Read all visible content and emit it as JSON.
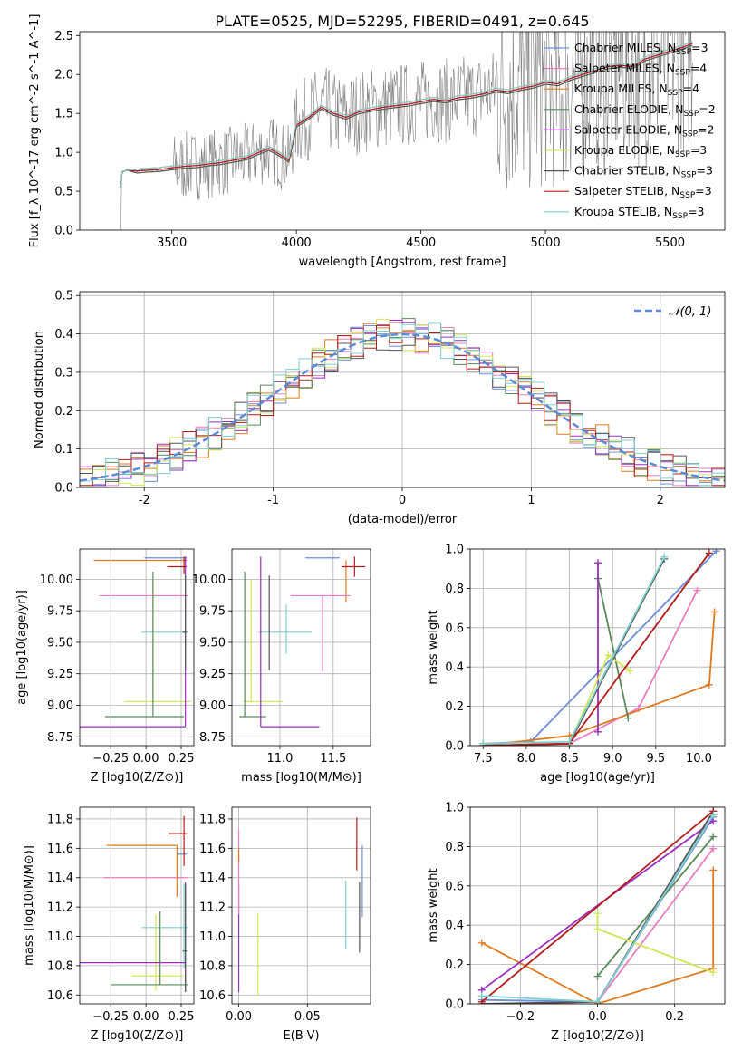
{
  "figure": {
    "title": "PLATE=0525, MJD=52295, FIBERID=0491, z=0.645"
  },
  "models": [
    {
      "name": "Chabrier MILES",
      "nssp": "3",
      "color": "#6a8fd8"
    },
    {
      "name": "Salpeter MILES",
      "nssp": "4",
      "color": "#e87fbf"
    },
    {
      "name": "Kroupa MILES",
      "nssp": "4",
      "color": "#e07a1f"
    },
    {
      "name": "Chabrier ELODIE",
      "nssp": "2",
      "color": "#5a8a5a"
    },
    {
      "name": "Salpeter ELODIE",
      "nssp": "2",
      "color": "#9a2fbf"
    },
    {
      "name": "Kroupa ELODIE",
      "nssp": "3",
      "color": "#d4e55a"
    },
    {
      "name": "Chabrier STELIB",
      "nssp": "3",
      "color": "#555555"
    },
    {
      "name": "Salpeter STELIB",
      "nssp": "3",
      "color": "#b41c1c"
    },
    {
      "name": "Kroupa STELIB",
      "nssp": "3",
      "color": "#7fcfd0"
    }
  ],
  "chart_data": [
    {
      "id": "spectrum",
      "type": "line",
      "xlabel": "wavelength [Angstrom, rest frame]",
      "ylabel": "Flux [f_λ 10^-17 erg cm^-2 s^-1 A^-1]",
      "xlim": [
        3130,
        5720
      ],
      "ylim": [
        0,
        2.55
      ],
      "xticks": [
        3500,
        4000,
        4500,
        5000,
        5500
      ],
      "yticks": [
        0.0,
        0.5,
        1.0,
        1.5,
        2.0,
        2.5
      ],
      "ytick_labels": [
        "0.0",
        "0.5",
        "1.0",
        "1.5",
        "2.0",
        "2.5"
      ],
      "observed_color": "#808080",
      "model_x": [
        3295,
        3300,
        3320,
        3360,
        3400,
        3450,
        3500,
        3550,
        3600,
        3650,
        3700,
        3750,
        3800,
        3850,
        3890,
        3930,
        3970,
        4000,
        4050,
        4100,
        4150,
        4200,
        4250,
        4300,
        4350,
        4400,
        4450,
        4500,
        4550,
        4600,
        4650,
        4700,
        4750,
        4800,
        4850,
        4900,
        4950,
        5000,
        5050,
        5100,
        5150,
        5200,
        5250,
        5300,
        5350,
        5400,
        5450,
        5500,
        5550,
        5590
      ],
      "model_y": [
        0.55,
        0.75,
        0.77,
        0.76,
        0.77,
        0.78,
        0.8,
        0.82,
        0.83,
        0.85,
        0.87,
        0.9,
        0.93,
        1.0,
        1.05,
        0.98,
        0.9,
        1.35,
        1.45,
        1.58,
        1.5,
        1.45,
        1.52,
        1.55,
        1.58,
        1.6,
        1.62,
        1.65,
        1.68,
        1.66,
        1.7,
        1.72,
        1.75,
        1.8,
        1.78,
        1.82,
        1.85,
        1.9,
        1.88,
        1.95,
        2.0,
        2.05,
        2.1,
        2.12,
        2.1,
        2.2,
        2.25,
        2.3,
        2.35,
        2.4
      ]
    },
    {
      "id": "residuals",
      "type": "step",
      "xlabel": "(data-model)/error",
      "ylabel": "Normed distribution",
      "xlim": [
        -2.5,
        2.5
      ],
      "ylim": [
        0,
        0.51
      ],
      "xticks": [
        -2,
        -1,
        0,
        1,
        2
      ],
      "yticks": [
        0.0,
        0.1,
        0.2,
        0.3,
        0.4,
        0.5
      ],
      "ytick_labels": [
        "0.0",
        "0.1",
        "0.2",
        "0.3",
        "0.4",
        "0.5"
      ],
      "gauss_label": "𝒩(0, 1)",
      "gauss_color": "#5b8bd6"
    },
    {
      "id": "age_vs_Z",
      "type": "errorbar",
      "xlabel": "Z [log10(Z/Z⊙)]",
      "ylabel": "age [log10(age/yr)]",
      "xlim": [
        -0.47,
        0.34
      ],
      "ylim": [
        8.68,
        10.24
      ],
      "xticks": [
        -0.25,
        0.0,
        0.25
      ],
      "xtick_labels": [
        "−0.25",
        "0.00",
        "0.25"
      ],
      "yticks": [
        8.75,
        9.0,
        9.25,
        9.5,
        9.75,
        10.0
      ],
      "ytick_labels": [
        "8.75",
        "9.00",
        "9.25",
        "9.50",
        "9.75",
        "10.00"
      ],
      "points": [
        {
          "m": 2,
          "x": 0.05,
          "xe": [
            0.42,
            0.24
          ],
          "y": 10.15,
          "ye": [
            0,
            0
          ]
        },
        {
          "m": 0,
          "x": 0.22,
          "xe": [
            0.23,
            0.07
          ],
          "y": 10.17,
          "ye": [
            0,
            0
          ]
        },
        {
          "m": 7,
          "x": 0.27,
          "xe": [
            0.12,
            0.02
          ],
          "y": 10.1,
          "ye": [
            0.06,
            0.08
          ]
        },
        {
          "m": 1,
          "x": 0.0,
          "xe": [
            0.33,
            0.3
          ],
          "y": 9.87,
          "ye": [
            0,
            0
          ]
        },
        {
          "m": 8,
          "x": 0.27,
          "xe": [
            0.3,
            0.03
          ],
          "y": 9.58,
          "ye": [
            0,
            0
          ]
        },
        {
          "m": 5,
          "x": 0.05,
          "xe": [
            0.2,
            0.27
          ],
          "y": 9.03,
          "ye": [
            0,
            0.97
          ]
        },
        {
          "m": 3,
          "x": 0.05,
          "xe": [
            0.34,
            0.22
          ],
          "y": 8.91,
          "ye": [
            0,
            1.15
          ]
        },
        {
          "m": 4,
          "x": 0.28,
          "xe": [
            0.75,
            0.0
          ],
          "y": 8.83,
          "ye": [
            0,
            1.35
          ]
        },
        {
          "m": 6,
          "x": 0.28,
          "xe": [
            0.02,
            0.01
          ],
          "y": 9.58,
          "ye": [
            0.3,
            0.45
          ]
        }
      ]
    },
    {
      "id": "age_vs_mass",
      "type": "errorbar",
      "xlabel": "mass [log10(M/M⊙)]",
      "ylabel": "",
      "xlim": [
        10.55,
        11.85
      ],
      "ylim": [
        8.68,
        10.24
      ],
      "xticks": [
        11.0,
        11.5
      ],
      "xtick_labels": [
        "11.0",
        "11.5"
      ],
      "yticks": [
        8.75,
        9.0,
        9.25,
        9.5,
        9.75,
        10.0
      ],
      "ytick_labels": [
        "8.75",
        "9.00",
        "9.25",
        "9.50",
        "9.75",
        "10.00"
      ],
      "points": [
        {
          "m": 2,
          "x": 11.62,
          "xe": [
            0.0,
            0.0
          ],
          "y": 10.15,
          "ye": [
            0.33,
            0.0
          ]
        },
        {
          "m": 0,
          "x": 11.56,
          "xe": [
            0.32,
            0.0
          ],
          "y": 10.17,
          "ye": [
            0.0,
            0.0
          ]
        },
        {
          "m": 7,
          "x": 11.7,
          "xe": [
            0.12,
            0.1
          ],
          "y": 10.1,
          "ye": [
            0.08,
            0.08
          ]
        },
        {
          "m": 1,
          "x": 11.4,
          "xe": [
            0.3,
            0.26
          ],
          "y": 9.87,
          "ye": [
            0.6,
            0.0
          ]
        },
        {
          "m": 8,
          "x": 11.06,
          "xe": [
            0.26,
            0.24
          ],
          "y": 9.58,
          "ye": [
            0.17,
            0.22
          ]
        },
        {
          "m": 5,
          "x": 10.73,
          "xe": [
            0.07,
            0.3
          ],
          "y": 9.03,
          "ye": [
            0,
            0.97
          ]
        },
        {
          "m": 3,
          "x": 10.67,
          "xe": [
            0.05,
            0.2
          ],
          "y": 8.91,
          "ye": [
            0,
            1.15
          ]
        },
        {
          "m": 4,
          "x": 10.82,
          "xe": [
            0.0,
            0.55
          ],
          "y": 8.83,
          "ye": [
            0,
            1.35
          ]
        },
        {
          "m": 6,
          "x": 10.9,
          "xe": [
            0.0,
            0.0
          ],
          "y": 9.58,
          "ye": [
            0.3,
            0.45
          ]
        }
      ]
    },
    {
      "id": "mw_vs_age",
      "type": "line",
      "xlabel": "age [log10(age/yr)]",
      "ylabel": "mass weight",
      "xlim": [
        7.35,
        10.3
      ],
      "ylim": [
        0,
        1.0
      ],
      "xticks": [
        7.5,
        8.0,
        8.5,
        9.0,
        9.5,
        10.0
      ],
      "xtick_labels": [
        "7.5",
        "8.0",
        "8.5",
        "9.0",
        "9.5",
        "10.0"
      ],
      "yticks": [
        0.0,
        0.2,
        0.4,
        0.6,
        0.8,
        1.0
      ],
      "ytick_labels": [
        "0.0",
        "0.2",
        "0.4",
        "0.6",
        "0.8",
        "1.0"
      ],
      "series": [
        {
          "m": 0,
          "x": [
            7.5,
            8.05,
            10.2
          ],
          "y": [
            0.01,
            0.02,
            0.99
          ]
        },
        {
          "m": 1,
          "x": [
            7.5,
            8.5,
            9.3,
            9.98
          ],
          "y": [
            0.0,
            0.01,
            0.19,
            0.79
          ]
        },
        {
          "m": 2,
          "x": [
            7.5,
            8.5,
            10.12,
            10.18
          ],
          "y": [
            0.0,
            0.05,
            0.31,
            0.68
          ]
        },
        {
          "m": 3,
          "x": [
            8.83,
            9.18
          ],
          "y": [
            0.85,
            0.14
          ]
        },
        {
          "m": 4,
          "x": [
            8.83,
            8.83
          ],
          "y": [
            0.93,
            0.07
          ]
        },
        {
          "m": 5,
          "x": [
            7.5,
            8.5,
            8.95,
            9.2
          ],
          "y": [
            0.0,
            0.01,
            0.46,
            0.38
          ]
        },
        {
          "m": 6,
          "x": [
            7.5,
            8.5,
            9.6
          ],
          "y": [
            0.0,
            0.01,
            0.95
          ]
        },
        {
          "m": 7,
          "x": [
            7.5,
            8.5,
            10.12
          ],
          "y": [
            0.0,
            0.01,
            0.98
          ]
        },
        {
          "m": 8,
          "x": [
            7.5,
            8.5,
            9.6
          ],
          "y": [
            0.01,
            0.02,
            0.96
          ]
        }
      ]
    },
    {
      "id": "mass_vs_Z",
      "type": "errorbar",
      "xlabel": "Z [log10(Z/Z⊙)]",
      "ylabel": "mass [log10(M/M⊙)]",
      "xlim": [
        -0.47,
        0.34
      ],
      "ylim": [
        10.54,
        11.88
      ],
      "xticks": [
        -0.25,
        0.0,
        0.25
      ],
      "xtick_labels": [
        "−0.25",
        "0.00",
        "0.25"
      ],
      "yticks": [
        10.6,
        10.8,
        11.0,
        11.2,
        11.4,
        11.6,
        11.8
      ],
      "ytick_labels": [
        "10.6",
        "10.8",
        "11.0",
        "11.2",
        "11.4",
        "11.6",
        "11.8"
      ],
      "points": [
        {
          "m": 2,
          "x": 0.22,
          "xe": [
            0.5,
            0.0
          ],
          "y": 11.62,
          "ye": [
            0.35,
            0.0
          ]
        },
        {
          "m": 0,
          "x": 0.22,
          "xe": [
            0.0,
            0.07
          ],
          "y": 11.56,
          "ye": [
            0,
            0
          ]
        },
        {
          "m": 7,
          "x": 0.27,
          "xe": [
            0.11,
            0.02
          ],
          "y": 11.7,
          "ye": [
            0.22,
            0.12
          ]
        },
        {
          "m": 1,
          "x": 0.1,
          "xe": [
            0.4,
            0.2
          ],
          "y": 11.4,
          "ye": [
            0,
            0
          ]
        },
        {
          "m": 8,
          "x": 0.27,
          "xe": [
            0.3,
            0.03
          ],
          "y": 11.06,
          "ye": [
            0.28,
            0.3
          ]
        },
        {
          "m": 5,
          "x": 0.07,
          "xe": [
            0.17,
            0.2
          ],
          "y": 10.73,
          "ye": [
            0.1,
            0.42
          ]
        },
        {
          "m": 3,
          "x": 0.1,
          "xe": [
            0.35,
            0.2
          ],
          "y": 10.67,
          "ye": [
            0,
            0.5
          ]
        },
        {
          "m": 4,
          "x": 0.28,
          "xe": [
            0.75,
            0.0
          ],
          "y": 10.82,
          "ye": [
            0.2,
            0.55
          ]
        },
        {
          "m": 6,
          "x": 0.28,
          "xe": [
            0.02,
            0.01
          ],
          "y": 10.9,
          "ye": [
            0.28,
            0.45
          ]
        }
      ]
    },
    {
      "id": "mass_vs_EBV",
      "type": "errorbar",
      "xlabel": "E(B-V)",
      "ylabel": "",
      "xlim": [
        -0.005,
        0.096
      ],
      "ylim": [
        10.54,
        11.88
      ],
      "xticks": [
        0.0,
        0.05
      ],
      "xtick_labels": [
        "0.00",
        "0.05"
      ],
      "yticks": [
        10.6,
        10.8,
        11.0,
        11.2,
        11.4,
        11.6,
        11.8
      ],
      "ytick_labels": [
        "10.6",
        "10.8",
        "11.0",
        "11.2",
        "11.4",
        "11.6",
        "11.8"
      ],
      "points": [
        {
          "m": 4,
          "x": 0.0,
          "xe": [
            0,
            0
          ],
          "y": 10.9,
          "ye": [
            0.28,
            0.45
          ]
        },
        {
          "m": 1,
          "x": 0.0,
          "xe": [
            0,
            0
          ],
          "y": 11.45,
          "ye": [
            0.3,
            0.28
          ]
        },
        {
          "m": 2,
          "x": 0.0,
          "xe": [
            0,
            0
          ],
          "y": 11.55,
          "ye": [
            0.05,
            0.05
          ]
        },
        {
          "m": 5,
          "x": 0.014,
          "xe": [
            0,
            0
          ],
          "y": 10.88,
          "ye": [
            0.28,
            0.28
          ]
        },
        {
          "m": 8,
          "x": 0.078,
          "xe": [
            0,
            0
          ],
          "y": 11.15,
          "ye": [
            0.24,
            0.23
          ]
        },
        {
          "m": 7,
          "x": 0.086,
          "xe": [
            0,
            0
          ],
          "y": 11.69,
          "ye": [
            0.24,
            0.12
          ]
        },
        {
          "m": 6,
          "x": 0.088,
          "xe": [
            0,
            0
          ],
          "y": 11.14,
          "ye": [
            0.25,
            0.23
          ]
        },
        {
          "m": 0,
          "x": 0.09,
          "xe": [
            0,
            0
          ],
          "y": 11.38,
          "ye": [
            0.25,
            0.24
          ]
        }
      ]
    },
    {
      "id": "mw_vs_Z",
      "type": "line",
      "xlabel": "Z [log10(Z/Z⊙)]",
      "ylabel": "mass weight",
      "xlim": [
        -0.33,
        0.33
      ],
      "ylim": [
        0,
        1.0
      ],
      "xticks": [
        -0.2,
        0.0,
        0.2
      ],
      "xtick_labels": [
        "−0.2",
        "0.0",
        "0.2"
      ],
      "yticks": [
        0.0,
        0.2,
        0.4,
        0.6,
        0.8,
        1.0
      ],
      "ytick_labels": [
        "0.0",
        "0.2",
        "0.4",
        "0.6",
        "0.8",
        "1.0"
      ],
      "series": [
        {
          "m": 0,
          "x": [
            -0.3,
            0.0,
            0.3
          ],
          "y": [
            0.02,
            0.01,
            0.95
          ]
        },
        {
          "m": 1,
          "x": [
            -0.3,
            0.0,
            0.3
          ],
          "y": [
            0.0,
            0.01,
            0.79
          ]
        },
        {
          "m": 2,
          "x": [
            -0.3,
            0.0,
            0.3,
            0.3
          ],
          "y": [
            0.31,
            0.0,
            0.18,
            0.68
          ]
        },
        {
          "m": 3,
          "x": [
            0.0,
            0.3
          ],
          "y": [
            0.14,
            0.85
          ]
        },
        {
          "m": 4,
          "x": [
            -0.3,
            0.3
          ],
          "y": [
            0.07,
            0.93
          ]
        },
        {
          "m": 5,
          "x": [
            0.0,
            0.0,
            0.3
          ],
          "y": [
            0.46,
            0.38,
            0.16
          ]
        },
        {
          "m": 6,
          "x": [
            -0.3,
            0.0,
            0.3
          ],
          "y": [
            0.0,
            0.01,
            0.98
          ]
        },
        {
          "m": 7,
          "x": [
            -0.3,
            0.3
          ],
          "y": [
            0.01,
            0.98
          ]
        },
        {
          "m": 8,
          "x": [
            -0.3,
            0.0,
            0.3
          ],
          "y": [
            0.04,
            0.01,
            0.96
          ]
        }
      ]
    }
  ]
}
